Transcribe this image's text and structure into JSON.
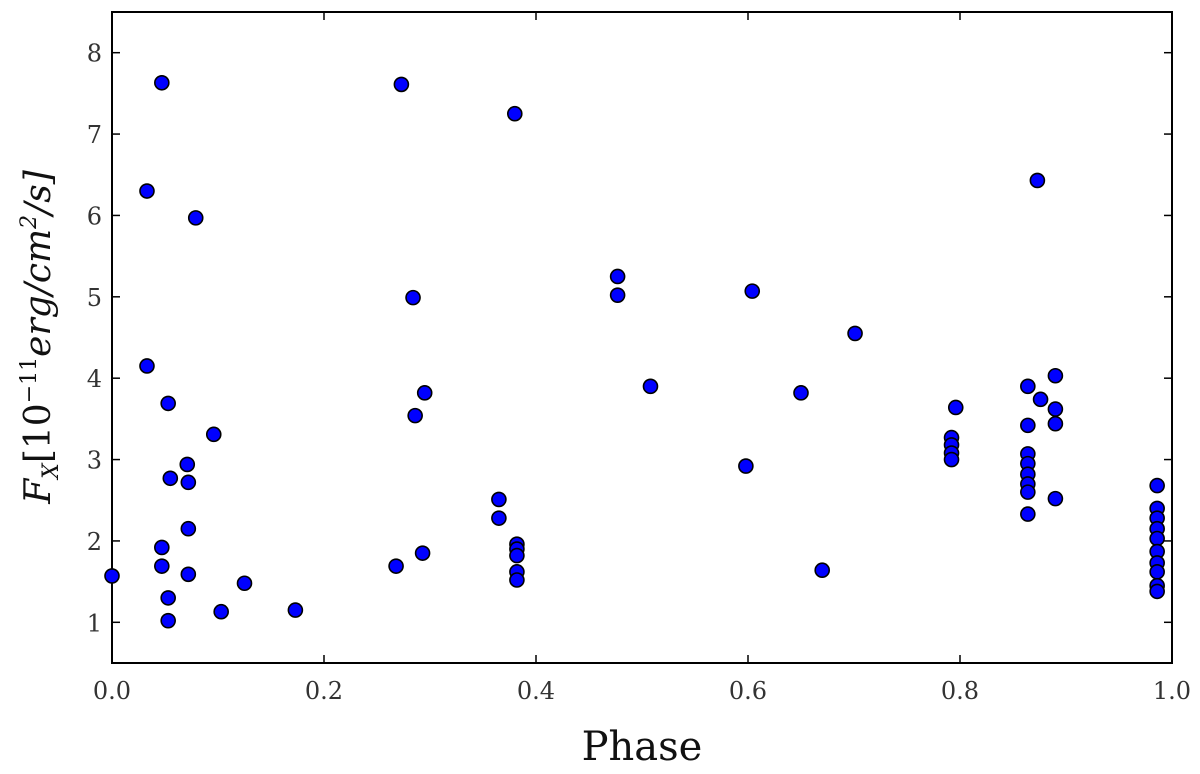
{
  "chart_data": {
    "type": "scatter",
    "xlabel": "Phase",
    "ylabel": "F_X [10^-11 erg/cm^2/s]",
    "ylabel_parts": {
      "symbol": "F",
      "sub": "X",
      "open": "[10",
      "exp": "−11",
      "unit1": "erg/cm",
      "exp2": "2",
      "unit2": "/s]"
    },
    "xlim": [
      0.0,
      1.0
    ],
    "ylim": [
      0.5,
      8.5
    ],
    "xticks": [
      "0.0",
      "0.2",
      "0.4",
      "0.6",
      "0.8",
      "1.0"
    ],
    "yticks": [
      "1",
      "2",
      "3",
      "4",
      "5",
      "6",
      "7",
      "8"
    ],
    "grid": false,
    "marker_color": "#0000ff",
    "marker_edge": "#000000",
    "points": [
      [
        0.0,
        1.57
      ],
      [
        0.033,
        6.3
      ],
      [
        0.033,
        4.15
      ],
      [
        0.047,
        7.63
      ],
      [
        0.047,
        1.92
      ],
      [
        0.047,
        1.69
      ],
      [
        0.053,
        3.69
      ],
      [
        0.053,
        1.3
      ],
      [
        0.053,
        1.02
      ],
      [
        0.055,
        2.77
      ],
      [
        0.071,
        2.94
      ],
      [
        0.072,
        2.72
      ],
      [
        0.072,
        2.15
      ],
      [
        0.072,
        1.59
      ],
      [
        0.079,
        5.97
      ],
      [
        0.096,
        3.31
      ],
      [
        0.103,
        1.13
      ],
      [
        0.125,
        1.48
      ],
      [
        0.173,
        1.15
      ],
      [
        0.268,
        1.69
      ],
      [
        0.273,
        7.61
      ],
      [
        0.284,
        4.99
      ],
      [
        0.286,
        3.54
      ],
      [
        0.293,
        1.85
      ],
      [
        0.295,
        3.82
      ],
      [
        0.365,
        2.51
      ],
      [
        0.365,
        2.28
      ],
      [
        0.38,
        7.25
      ],
      [
        0.382,
        1.96
      ],
      [
        0.382,
        1.9
      ],
      [
        0.382,
        1.82
      ],
      [
        0.382,
        1.62
      ],
      [
        0.382,
        1.52
      ],
      [
        0.477,
        5.25
      ],
      [
        0.477,
        5.02
      ],
      [
        0.508,
        3.9
      ],
      [
        0.598,
        2.92
      ],
      [
        0.604,
        5.07
      ],
      [
        0.65,
        3.82
      ],
      [
        0.67,
        1.64
      ],
      [
        0.701,
        4.55
      ],
      [
        0.792,
        3.27
      ],
      [
        0.792,
        3.18
      ],
      [
        0.792,
        3.08
      ],
      [
        0.792,
        3.0
      ],
      [
        0.796,
        3.64
      ],
      [
        0.864,
        3.9
      ],
      [
        0.864,
        3.42
      ],
      [
        0.864,
        3.07
      ],
      [
        0.864,
        2.95
      ],
      [
        0.864,
        2.82
      ],
      [
        0.864,
        2.7
      ],
      [
        0.864,
        2.6
      ],
      [
        0.864,
        2.33
      ],
      [
        0.873,
        6.43
      ],
      [
        0.876,
        3.74
      ],
      [
        0.89,
        4.03
      ],
      [
        0.89,
        3.62
      ],
      [
        0.89,
        3.44
      ],
      [
        0.89,
        2.52
      ],
      [
        0.986,
        2.68
      ],
      [
        0.986,
        2.4
      ],
      [
        0.986,
        2.28
      ],
      [
        0.986,
        2.15
      ],
      [
        0.986,
        2.03
      ],
      [
        0.986,
        1.87
      ],
      [
        0.986,
        1.73
      ],
      [
        0.986,
        1.62
      ],
      [
        0.986,
        1.45
      ],
      [
        0.986,
        1.38
      ]
    ]
  }
}
